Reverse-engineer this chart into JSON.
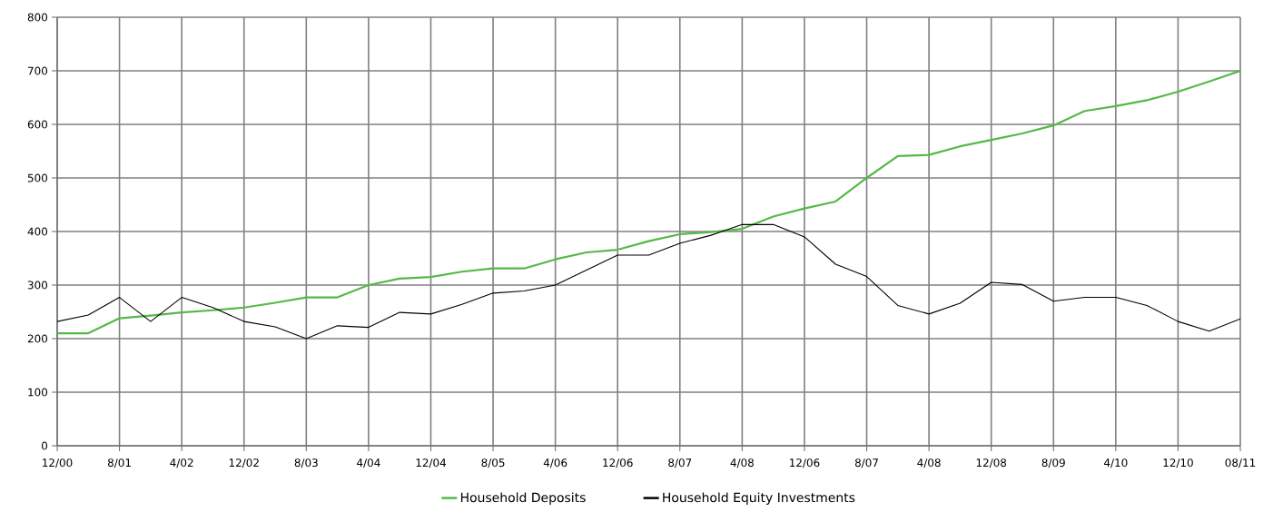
{
  "chart_data": {
    "type": "line",
    "categories": [
      "12/00",
      null,
      "8/01",
      null,
      "4/02",
      null,
      "12/02",
      null,
      "8/03",
      null,
      "4/04",
      null,
      "12/04",
      null,
      "8/05",
      null,
      "4/06",
      null,
      "12/06",
      null,
      "8/07",
      null,
      "4/08",
      null,
      "12/06",
      null,
      "8/07",
      null,
      "4/08",
      null,
      "12/08",
      null,
      "8/09",
      null,
      "4/10",
      null,
      "12/10",
      null,
      "08/11"
    ],
    "series": [
      {
        "name": "Household Deposits",
        "color": "#55b947",
        "values": [
          210,
          210,
          238,
          243,
          249,
          253,
          258,
          267,
          277,
          277,
          300,
          312,
          315,
          325,
          331,
          331,
          348,
          361,
          366,
          382,
          395,
          399,
          405,
          428,
          443,
          456,
          500,
          541,
          543,
          559,
          571,
          583,
          598,
          625,
          634,
          645,
          661,
          680,
          700
        ]
      },
      {
        "name": "Household Equity Investments",
        "color": "#000000",
        "values": [
          232,
          244,
          277,
          232,
          277,
          258,
          232,
          222,
          200,
          224,
          221,
          249,
          246,
          264,
          285,
          289,
          300,
          328,
          356,
          356,
          378,
          393,
          413,
          413,
          390,
          339,
          316,
          262,
          246,
          266,
          305,
          301,
          270,
          277,
          277,
          262,
          232,
          214,
          237
        ]
      }
    ],
    "ylim": [
      0,
      800
    ],
    "yticks": [
      0,
      100,
      200,
      300,
      400,
      500,
      600,
      700,
      800
    ],
    "grid": true,
    "legend": "bottom",
    "marker": "none",
    "line_style": "solid"
  }
}
